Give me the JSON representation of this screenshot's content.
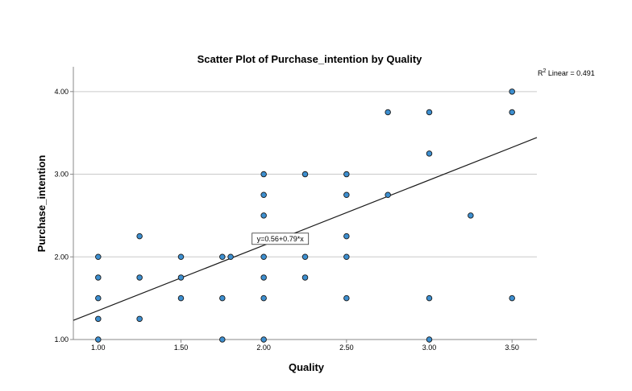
{
  "chart_data": {
    "type": "scatter",
    "title": "Scatter Plot of Purchase_intention by Quality",
    "xlabel": "Quality",
    "ylabel": "Purchase_intention",
    "xlim": [
      0.85,
      3.65
    ],
    "ylim": [
      1.0,
      4.3
    ],
    "x_ticks": [
      1.0,
      1.5,
      2.0,
      2.5,
      3.0,
      3.5
    ],
    "x_tick_labels": [
      "1.00",
      "1.50",
      "2.00",
      "2.50",
      "3.00",
      "3.50"
    ],
    "y_ticks": [
      1.0,
      2.0,
      3.0,
      4.0
    ],
    "y_tick_labels": [
      "1.00",
      "2.00",
      "3.00",
      "4.00"
    ],
    "grid": "horizontal",
    "r2_label": {
      "prefix": "R",
      "sup": "2",
      "text": " Linear = 0.491"
    },
    "fit_line": {
      "intercept": 0.56,
      "slope": 0.79,
      "equation_label": "y=0.56+0.79*x"
    },
    "colors": {
      "point_fill": "#3d8fd0",
      "point_stroke": "#1a1a1a",
      "fit_line": "#1a1a1a",
      "grid": "#c9c9c9",
      "axis": "#888888"
    },
    "points": [
      {
        "x": 1.0,
        "y": 2.0
      },
      {
        "x": 1.0,
        "y": 1.75
      },
      {
        "x": 1.0,
        "y": 1.5
      },
      {
        "x": 1.0,
        "y": 1.25
      },
      {
        "x": 1.0,
        "y": 1.0
      },
      {
        "x": 1.25,
        "y": 2.25
      },
      {
        "x": 1.25,
        "y": 1.75
      },
      {
        "x": 1.25,
        "y": 1.25
      },
      {
        "x": 1.5,
        "y": 2.0
      },
      {
        "x": 1.5,
        "y": 1.75
      },
      {
        "x": 1.5,
        "y": 1.5
      },
      {
        "x": 1.75,
        "y": 2.0
      },
      {
        "x": 1.75,
        "y": 1.5
      },
      {
        "x": 1.75,
        "y": 1.0
      },
      {
        "x": 1.8,
        "y": 2.0
      },
      {
        "x": 2.0,
        "y": 3.0
      },
      {
        "x": 2.0,
        "y": 2.75
      },
      {
        "x": 2.0,
        "y": 2.5
      },
      {
        "x": 2.0,
        "y": 2.25
      },
      {
        "x": 2.0,
        "y": 2.0
      },
      {
        "x": 2.0,
        "y": 1.75
      },
      {
        "x": 2.0,
        "y": 1.5
      },
      {
        "x": 2.0,
        "y": 1.0
      },
      {
        "x": 2.25,
        "y": 3.0
      },
      {
        "x": 2.25,
        "y": 2.25
      },
      {
        "x": 2.25,
        "y": 2.0
      },
      {
        "x": 2.25,
        "y": 1.75
      },
      {
        "x": 2.5,
        "y": 3.0
      },
      {
        "x": 2.5,
        "y": 2.75
      },
      {
        "x": 2.5,
        "y": 2.25
      },
      {
        "x": 2.5,
        "y": 2.0
      },
      {
        "x": 2.5,
        "y": 1.5
      },
      {
        "x": 2.75,
        "y": 3.75
      },
      {
        "x": 2.75,
        "y": 2.75
      },
      {
        "x": 3.0,
        "y": 3.75
      },
      {
        "x": 3.0,
        "y": 3.25
      },
      {
        "x": 3.0,
        "y": 1.5
      },
      {
        "x": 3.0,
        "y": 1.0
      },
      {
        "x": 3.25,
        "y": 2.5
      },
      {
        "x": 3.5,
        "y": 4.0
      },
      {
        "x": 3.5,
        "y": 3.75
      },
      {
        "x": 3.5,
        "y": 1.5
      }
    ]
  }
}
